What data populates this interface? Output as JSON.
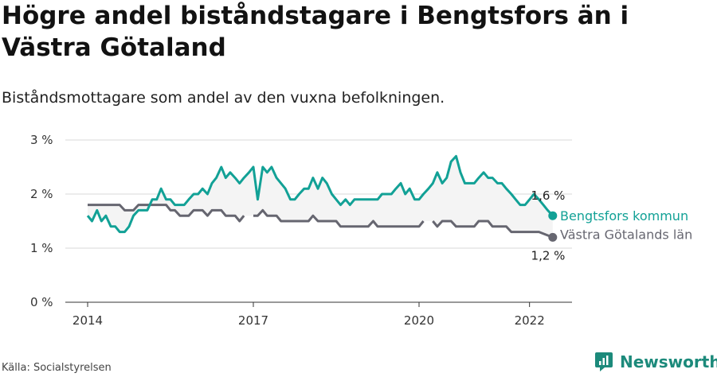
{
  "header": {
    "title": "Högre andel biståndstagare i Bengtsfors än i Västra Götaland",
    "subtitle": "Biståndsmottagare som andel av den vuxna befolkningen."
  },
  "footer": {
    "source": "Källa: Socialstyrelsen",
    "brand": "Newsworthy"
  },
  "colors": {
    "bengtsfors": "#12a196",
    "vgr": "#666670",
    "band": "#f4f4f4",
    "brand": "#1c8a7b"
  },
  "chart_data": {
    "type": "line",
    "ylim": [
      0,
      3
    ],
    "ytick_labels": [
      "0 %",
      "1 %",
      "2 %",
      "3 %"
    ],
    "xlim": [
      2014.0,
      2022.5
    ],
    "xtick_labels": [
      "2014",
      "2017",
      "2020",
      "2022"
    ],
    "grid": true,
    "series": [
      {
        "name": "Bengtsfors kommun",
        "end_label": "1,6 %",
        "points": [
          [
            2014.0,
            1.6
          ],
          [
            2014.08,
            1.5
          ],
          [
            2014.17,
            1.7
          ],
          [
            2014.25,
            1.5
          ],
          [
            2014.33,
            1.6
          ],
          [
            2014.42,
            1.4
          ],
          [
            2014.5,
            1.4
          ],
          [
            2014.58,
            1.3
          ],
          [
            2014.67,
            1.3
          ],
          [
            2014.75,
            1.4
          ],
          [
            2014.83,
            1.6
          ],
          [
            2014.92,
            1.7
          ],
          [
            2015.0,
            1.7
          ],
          [
            2015.08,
            1.7
          ],
          [
            2015.17,
            1.9
          ],
          [
            2015.25,
            1.9
          ],
          [
            2015.33,
            2.1
          ],
          [
            2015.42,
            1.9
          ],
          [
            2015.5,
            1.9
          ],
          [
            2015.58,
            1.8
          ],
          [
            2015.67,
            1.8
          ],
          [
            2015.75,
            1.8
          ],
          [
            2015.83,
            1.9
          ],
          [
            2015.92,
            2.0
          ],
          [
            2016.0,
            2.0
          ],
          [
            2016.08,
            2.1
          ],
          [
            2016.17,
            2.0
          ],
          [
            2016.25,
            2.2
          ],
          [
            2016.33,
            2.3
          ],
          [
            2016.42,
            2.5
          ],
          [
            2016.5,
            2.3
          ],
          [
            2016.58,
            2.4
          ],
          [
            2016.67,
            2.3
          ],
          [
            2016.75,
            2.2
          ],
          [
            2016.83,
            2.3
          ],
          [
            2016.92,
            2.4
          ],
          [
            2017.0,
            2.5
          ],
          [
            2017.08,
            1.9
          ],
          [
            2017.17,
            2.5
          ],
          [
            2017.25,
            2.4
          ],
          [
            2017.33,
            2.5
          ],
          [
            2017.42,
            2.3
          ],
          [
            2017.5,
            2.2
          ],
          [
            2017.58,
            2.1
          ],
          [
            2017.67,
            1.9
          ],
          [
            2017.75,
            1.9
          ],
          [
            2017.83,
            2.0
          ],
          [
            2017.92,
            2.1
          ],
          [
            2018.0,
            2.1
          ],
          [
            2018.08,
            2.3
          ],
          [
            2018.17,
            2.1
          ],
          [
            2018.25,
            2.3
          ],
          [
            2018.33,
            2.2
          ],
          [
            2018.42,
            2.0
          ],
          [
            2018.5,
            1.9
          ],
          [
            2018.58,
            1.8
          ],
          [
            2018.67,
            1.9
          ],
          [
            2018.75,
            1.8
          ],
          [
            2018.83,
            1.9
          ],
          [
            2018.92,
            1.9
          ],
          [
            2019.0,
            1.9
          ],
          [
            2019.08,
            1.9
          ],
          [
            2019.17,
            1.9
          ],
          [
            2019.25,
            1.9
          ],
          [
            2019.33,
            2.0
          ],
          [
            2019.42,
            2.0
          ],
          [
            2019.5,
            2.0
          ],
          [
            2019.58,
            2.1
          ],
          [
            2019.67,
            2.2
          ],
          [
            2019.75,
            2.0
          ],
          [
            2019.83,
            2.1
          ],
          [
            2019.92,
            1.9
          ],
          [
            2020.0,
            1.9
          ],
          [
            2020.08,
            2.0
          ],
          [
            2020.17,
            2.1
          ],
          [
            2020.25,
            2.2
          ],
          [
            2020.33,
            2.4
          ],
          [
            2020.42,
            2.2
          ],
          [
            2020.5,
            2.3
          ],
          [
            2020.58,
            2.6
          ],
          [
            2020.67,
            2.7
          ],
          [
            2020.75,
            2.4
          ],
          [
            2020.83,
            2.2
          ],
          [
            2020.92,
            2.2
          ],
          [
            2021.0,
            2.2
          ],
          [
            2021.08,
            2.3
          ],
          [
            2021.17,
            2.4
          ],
          [
            2021.25,
            2.3
          ],
          [
            2021.33,
            2.3
          ],
          [
            2021.42,
            2.2
          ],
          [
            2021.5,
            2.2
          ],
          [
            2021.58,
            2.1
          ],
          [
            2021.67,
            2.0
          ],
          [
            2021.75,
            1.9
          ],
          [
            2021.83,
            1.8
          ],
          [
            2021.92,
            1.8
          ],
          [
            2022.0,
            1.9
          ],
          [
            2022.08,
            2.0
          ],
          [
            2022.17,
            1.9
          ],
          [
            2022.25,
            1.8
          ],
          [
            2022.33,
            1.7
          ],
          [
            2022.42,
            1.6
          ]
        ]
      },
      {
        "name": "Västra Götalands län",
        "end_label": "1,2 %",
        "points": [
          [
            2014.0,
            1.8
          ],
          [
            2014.58,
            1.8
          ],
          [
            2014.67,
            1.7
          ],
          [
            2014.83,
            1.7
          ],
          [
            2014.92,
            1.8
          ],
          [
            2015.42,
            1.8
          ],
          [
            2015.5,
            1.7
          ],
          [
            2015.58,
            1.7
          ],
          [
            2015.67,
            1.6
          ],
          [
            2015.83,
            1.6
          ],
          [
            2015.92,
            1.7
          ],
          [
            2016.08,
            1.7
          ],
          [
            2016.17,
            1.6
          ],
          [
            2016.25,
            1.7
          ],
          [
            2016.42,
            1.7
          ],
          [
            2016.5,
            1.6
          ],
          [
            2016.67,
            1.6
          ],
          [
            2016.75,
            1.5
          ],
          [
            2016.83,
            1.6
          ],
          null,
          [
            2017.0,
            1.6
          ],
          [
            2017.08,
            1.6
          ],
          [
            2017.17,
            1.7
          ],
          [
            2017.25,
            1.6
          ],
          [
            2017.42,
            1.6
          ],
          [
            2017.5,
            1.5
          ],
          [
            2018.0,
            1.5
          ],
          [
            2018.08,
            1.6
          ],
          [
            2018.17,
            1.5
          ],
          [
            2018.5,
            1.5
          ],
          [
            2018.58,
            1.4
          ],
          [
            2019.08,
            1.4
          ],
          [
            2019.17,
            1.5
          ],
          [
            2019.25,
            1.4
          ],
          [
            2020.0,
            1.4
          ],
          [
            2020.08,
            1.5
          ],
          null,
          [
            2020.25,
            1.5
          ],
          [
            2020.33,
            1.4
          ],
          [
            2020.42,
            1.5
          ],
          [
            2020.58,
            1.5
          ],
          [
            2020.67,
            1.4
          ],
          [
            2021.0,
            1.4
          ],
          [
            2021.08,
            1.5
          ],
          [
            2021.25,
            1.5
          ],
          [
            2021.33,
            1.4
          ],
          [
            2021.58,
            1.4
          ],
          [
            2021.67,
            1.3
          ],
          [
            2022.08,
            1.3
          ],
          [
            2022.17,
            1.3
          ],
          [
            2022.42,
            1.2
          ]
        ]
      }
    ]
  }
}
